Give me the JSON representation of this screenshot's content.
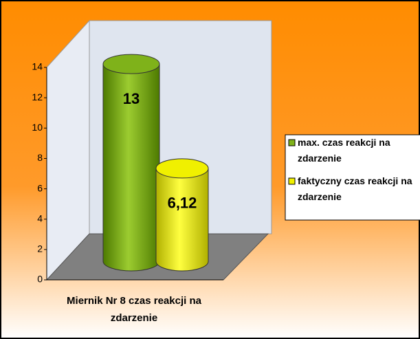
{
  "chart_data": {
    "type": "bar3d-cylinder",
    "x_label": "Miernik Nr 8 czas reakcji na zdarzenie",
    "series": [
      {
        "name": "max. czas reakcji na zdarzenie",
        "color": "#7fb21a",
        "values": [
          13
        ]
      },
      {
        "name": "faktyczny czas reakcji na zdarzenie",
        "color": "#f0f000",
        "values": [
          6.12
        ],
        "value_labels": [
          "6,12"
        ]
      }
    ],
    "ylim": [
      0,
      14
    ],
    "yticks": [
      0,
      2,
      4,
      6,
      8,
      10,
      12,
      14
    ]
  }
}
